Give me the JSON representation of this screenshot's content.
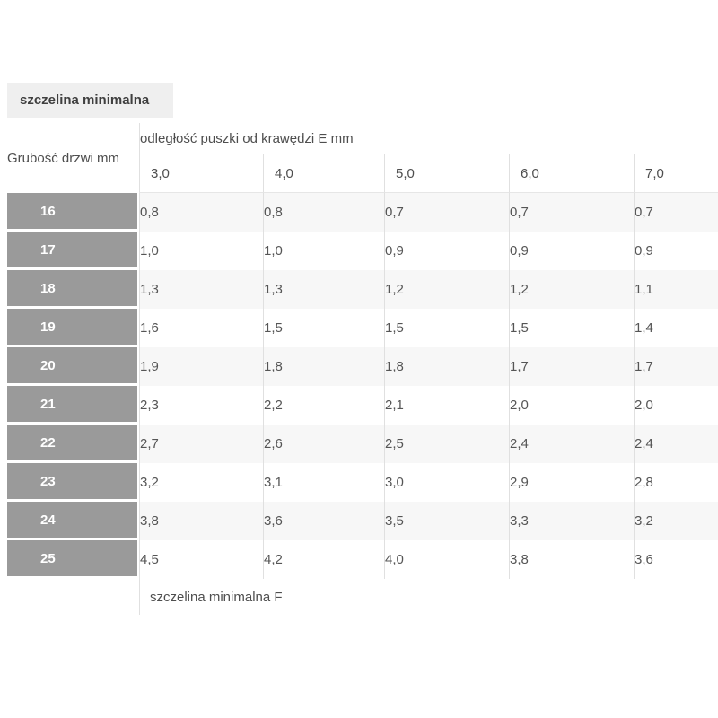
{
  "badge": {
    "label": "szczelina minimalna",
    "bg": "#efefef"
  },
  "table": {
    "row_header_title": "Grubość drzwi mm",
    "col_group_title": "odległość puszki od krawędzi E mm",
    "columns": [
      "3,0",
      "4,0",
      "5,0",
      "6,0",
      "7,0"
    ],
    "rows": [
      {
        "thickness": "16",
        "values": [
          "0,8",
          "0,8",
          "0,7",
          "0,7",
          "0,7"
        ]
      },
      {
        "thickness": "17",
        "values": [
          "1,0",
          "1,0",
          "0,9",
          "0,9",
          "0,9"
        ]
      },
      {
        "thickness": "18",
        "values": [
          "1,3",
          "1,3",
          "1,2",
          "1,2",
          "1,1"
        ]
      },
      {
        "thickness": "19",
        "values": [
          "1,6",
          "1,5",
          "1,5",
          "1,5",
          "1,4"
        ]
      },
      {
        "thickness": "20",
        "values": [
          "1,9",
          "1,8",
          "1,8",
          "1,7",
          "1,7"
        ]
      },
      {
        "thickness": "21",
        "values": [
          "2,3",
          "2,2",
          "2,1",
          "2,0",
          "2,0"
        ]
      },
      {
        "thickness": "22",
        "values": [
          "2,7",
          "2,6",
          "2,5",
          "2,4",
          "2,4"
        ]
      },
      {
        "thickness": "23",
        "values": [
          "3,2",
          "3,1",
          "3,0",
          "2,9",
          "2,8"
        ]
      },
      {
        "thickness": "24",
        "values": [
          "3,8",
          "3,6",
          "3,5",
          "3,3",
          "3,2"
        ]
      },
      {
        "thickness": "25",
        "values": [
          "4,5",
          "4,2",
          "4,0",
          "3,8",
          "3,6"
        ]
      }
    ],
    "footer": "szczelina minimalna F",
    "colors": {
      "row_header_bg": "#9a9a9a",
      "stripe": "#f7f7f7",
      "border": "#e0e0e0",
      "badge_bg": "#efefef"
    }
  }
}
